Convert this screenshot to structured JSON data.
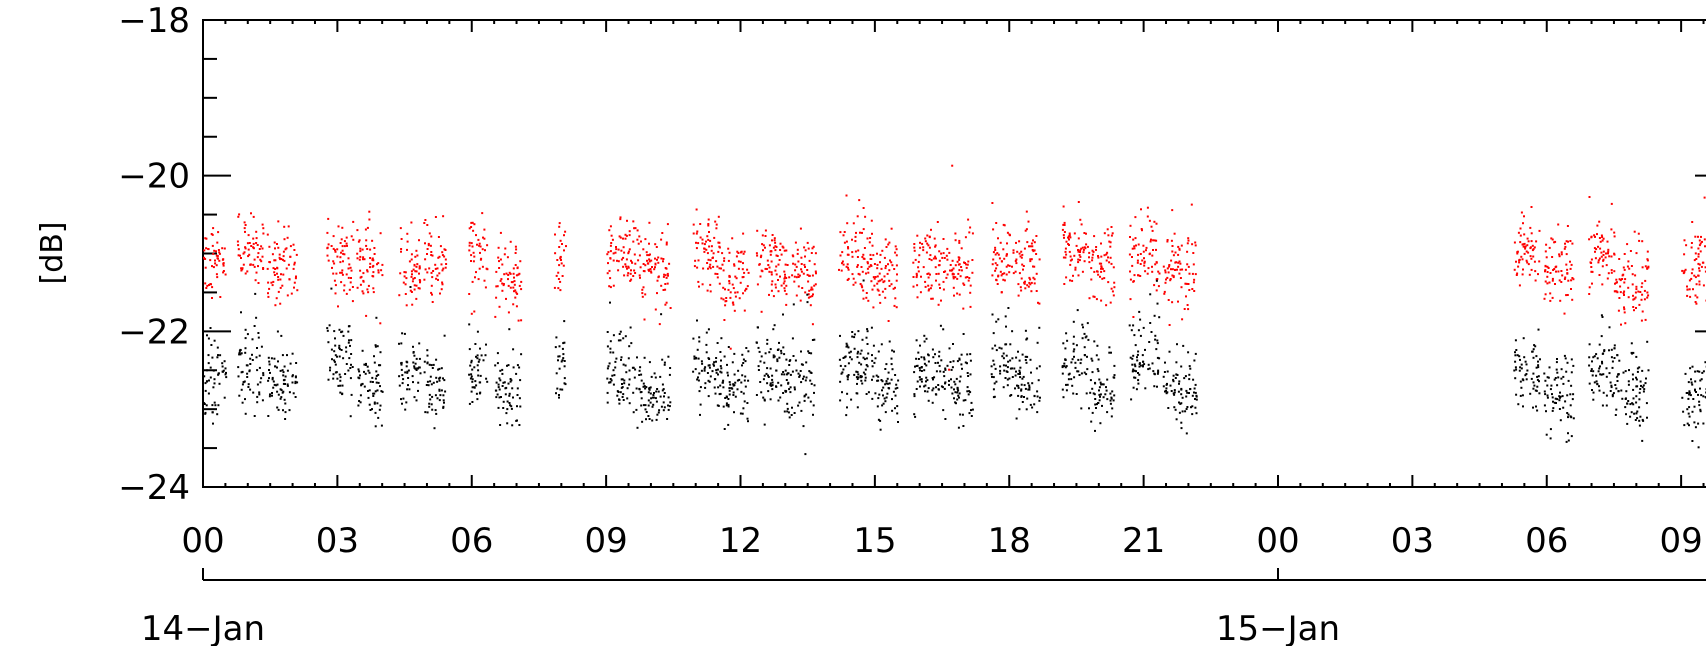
{
  "chart_data": {
    "type": "scatter",
    "title": "",
    "ylabel": "[dB]",
    "xlabel": "",
    "ylim": [
      -24,
      -18
    ],
    "xlim": [
      "14-Jan 00:00",
      "15-Jan 09:36"
    ],
    "y_ticks": [
      "-24",
      "-22",
      "-20",
      "-18"
    ],
    "x_tick_labels": [
      "00",
      "03",
      "06",
      "09",
      "12",
      "15",
      "18",
      "21",
      "00",
      "03",
      "06",
      "09"
    ],
    "date_labels": [
      "14-Jan",
      "15-Jan"
    ],
    "grid": false,
    "legend": "none",
    "series": [
      {
        "color": "#ff0000",
        "clusters": [
          {
            "start": "14-Jan 00:00",
            "end": "14-Jan 00:30",
            "y": -21.1
          },
          {
            "start": "14-Jan 00:45",
            "end": "14-Jan 01:20",
            "y": -21.0
          },
          {
            "start": "14-Jan 01:25",
            "end": "14-Jan 02:05",
            "y": -21.1
          },
          {
            "start": "14-Jan 02:45",
            "end": "14-Jan 03:20",
            "y": -21.1
          },
          {
            "start": "14-Jan 03:25",
            "end": "14-Jan 04:00",
            "y": -21.1
          },
          {
            "start": "14-Jan 04:20",
            "end": "14-Jan 04:50",
            "y": -21.2
          },
          {
            "start": "14-Jan 04:55",
            "end": "14-Jan 05:25",
            "y": -21.1
          },
          {
            "start": "14-Jan 05:55",
            "end": "14-Jan 06:20",
            "y": -21.0
          },
          {
            "start": "14-Jan 06:30",
            "end": "14-Jan 07:05",
            "y": -21.3
          },
          {
            "start": "14-Jan 07:50",
            "end": "14-Jan 08:05",
            "y": -21.0
          },
          {
            "start": "14-Jan 09:00",
            "end": "14-Jan 09:40",
            "y": -21.0
          },
          {
            "start": "14-Jan 09:40",
            "end": "14-Jan 10:25",
            "y": -21.2
          },
          {
            "start": "14-Jan 10:55",
            "end": "14-Jan 11:35",
            "y": -21.0
          },
          {
            "start": "14-Jan 11:35",
            "end": "14-Jan 12:10",
            "y": -21.3
          },
          {
            "start": "14-Jan 12:20",
            "end": "14-Jan 12:55",
            "y": -21.1
          },
          {
            "start": "14-Jan 12:55",
            "end": "14-Jan 13:40",
            "y": -21.2
          },
          {
            "start": "14-Jan 14:10",
            "end": "14-Jan 14:55",
            "y": -21.0
          },
          {
            "start": "14-Jan 14:55",
            "end": "14-Jan 15:30",
            "y": -21.2
          },
          {
            "start": "14-Jan 15:50",
            "end": "14-Jan 16:30",
            "y": -21.1
          },
          {
            "start": "14-Jan 16:30",
            "end": "14-Jan 17:10",
            "y": -21.2
          },
          {
            "start": "14-Jan 17:35",
            "end": "14-Jan 18:05",
            "y": -21.1
          },
          {
            "start": "14-Jan 18:05",
            "end": "14-Jan 18:40",
            "y": -21.2
          },
          {
            "start": "14-Jan 19:10",
            "end": "14-Jan 19:45",
            "y": -20.9
          },
          {
            "start": "14-Jan 19:45",
            "end": "14-Jan 20:20",
            "y": -21.2
          },
          {
            "start": "14-Jan 20:40",
            "end": "14-Jan 21:20",
            "y": -21.0
          },
          {
            "start": "14-Jan 21:25",
            "end": "14-Jan 22:10",
            "y": -21.2
          },
          {
            "start": "15-Jan 05:15",
            "end": "15-Jan 05:50",
            "y": -21.0
          },
          {
            "start": "15-Jan 05:55",
            "end": "15-Jan 06:35",
            "y": -21.2
          },
          {
            "start": "15-Jan 06:55",
            "end": "15-Jan 07:30",
            "y": -21.0
          },
          {
            "start": "15-Jan 07:30",
            "end": "15-Jan 08:15",
            "y": -21.3
          },
          {
            "start": "15-Jan 09:00",
            "end": "15-Jan 09:36",
            "y": -21.2
          }
        ]
      },
      {
        "color": "#000000",
        "clusters": [
          {
            "start": "14-Jan 00:00",
            "end": "14-Jan 00:30",
            "y": -22.6
          },
          {
            "start": "14-Jan 00:45",
            "end": "14-Jan 01:20",
            "y": -22.4
          },
          {
            "start": "14-Jan 01:25",
            "end": "14-Jan 02:05",
            "y": -22.6
          },
          {
            "start": "14-Jan 02:45",
            "end": "14-Jan 03:20",
            "y": -22.4
          },
          {
            "start": "14-Jan 03:25",
            "end": "14-Jan 04:00",
            "y": -22.7
          },
          {
            "start": "14-Jan 04:20",
            "end": "14-Jan 04:50",
            "y": -22.5
          },
          {
            "start": "14-Jan 04:55",
            "end": "14-Jan 05:25",
            "y": -22.7
          },
          {
            "start": "14-Jan 05:55",
            "end": "14-Jan 06:20",
            "y": -22.5
          },
          {
            "start": "14-Jan 06:30",
            "end": "14-Jan 07:05",
            "y": -22.7
          },
          {
            "start": "14-Jan 07:50",
            "end": "14-Jan 08:05",
            "y": -22.4
          },
          {
            "start": "14-Jan 09:00",
            "end": "14-Jan 09:40",
            "y": -22.5
          },
          {
            "start": "14-Jan 09:40",
            "end": "14-Jan 10:25",
            "y": -22.8
          },
          {
            "start": "14-Jan 10:55",
            "end": "14-Jan 11:35",
            "y": -22.5
          },
          {
            "start": "14-Jan 11:35",
            "end": "14-Jan 12:10",
            "y": -22.7
          },
          {
            "start": "14-Jan 12:20",
            "end": "14-Jan 12:55",
            "y": -22.5
          },
          {
            "start": "14-Jan 12:55",
            "end": "14-Jan 13:40",
            "y": -22.6
          },
          {
            "start": "14-Jan 14:10",
            "end": "14-Jan 14:55",
            "y": -22.4
          },
          {
            "start": "14-Jan 14:55",
            "end": "14-Jan 15:30",
            "y": -22.7
          },
          {
            "start": "14-Jan 15:50",
            "end": "14-Jan 16:30",
            "y": -22.5
          },
          {
            "start": "14-Jan 16:30",
            "end": "14-Jan 17:10",
            "y": -22.7
          },
          {
            "start": "14-Jan 17:35",
            "end": "14-Jan 18:05",
            "y": -22.4
          },
          {
            "start": "14-Jan 18:05",
            "end": "14-Jan 18:40",
            "y": -22.6
          },
          {
            "start": "14-Jan 19:10",
            "end": "14-Jan 19:45",
            "y": -22.4
          },
          {
            "start": "14-Jan 19:45",
            "end": "14-Jan 20:20",
            "y": -22.7
          },
          {
            "start": "14-Jan 20:40",
            "end": "14-Jan 21:20",
            "y": -22.3
          },
          {
            "start": "14-Jan 21:25",
            "end": "14-Jan 22:10",
            "y": -22.7
          },
          {
            "start": "15-Jan 05:15",
            "end": "15-Jan 05:50",
            "y": -22.5
          },
          {
            "start": "15-Jan 05:55",
            "end": "15-Jan 06:35",
            "y": -22.8
          },
          {
            "start": "15-Jan 06:55",
            "end": "15-Jan 07:30",
            "y": -22.5
          },
          {
            "start": "15-Jan 07:30",
            "end": "15-Jan 08:15",
            "y": -22.7
          },
          {
            "start": "15-Jan 09:00",
            "end": "15-Jan 09:36",
            "y": -22.8
          }
        ]
      }
    ]
  }
}
